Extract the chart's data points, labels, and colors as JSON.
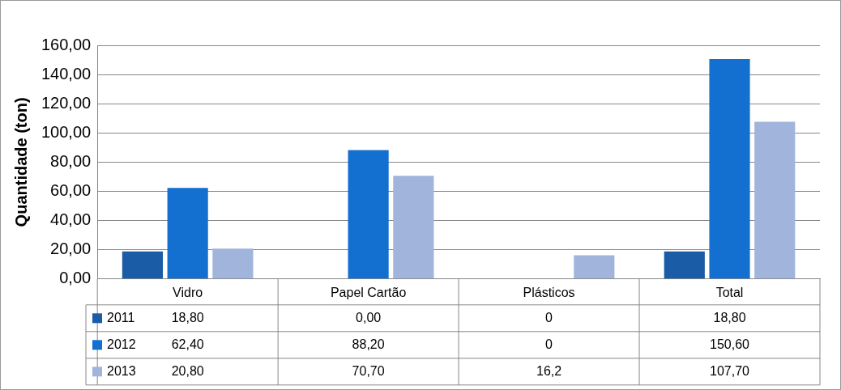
{
  "chart_data": {
    "type": "bar",
    "ylabel": "Quantidade (ton)",
    "categories": [
      "Vidro",
      "Papel Cartão",
      "Plásticos",
      "Total"
    ],
    "series": [
      {
        "name": "2011",
        "color": "#1a5ca6",
        "values": [
          18.8,
          0,
          0,
          18.8
        ],
        "value_labels": [
          "18,80",
          "0,00",
          "0",
          "18,80"
        ]
      },
      {
        "name": "2012",
        "color": "#1370d0",
        "values": [
          62.4,
          88.2,
          0,
          150.6
        ],
        "value_labels": [
          "62,40",
          "88,20",
          "0",
          "150,60"
        ]
      },
      {
        "name": "2013",
        "color": "#a0b4dc",
        "values": [
          20.8,
          70.7,
          16.2,
          107.7
        ],
        "value_labels": [
          "20,80",
          "70,70",
          "16,2",
          "107,70"
        ]
      }
    ],
    "ylim": [
      0,
      160
    ],
    "yticks": [
      {
        "value": 0,
        "label": "0,00"
      },
      {
        "value": 20,
        "label": "20,00"
      },
      {
        "value": 40,
        "label": "40,00"
      },
      {
        "value": 60,
        "label": "60,00"
      },
      {
        "value": 80,
        "label": "80,00"
      },
      {
        "value": 100,
        "label": "100,00"
      },
      {
        "value": 120,
        "label": "120,00"
      },
      {
        "value": 140,
        "label": "140,00"
      },
      {
        "value": 160,
        "label": "160,00"
      }
    ],
    "grid": "y",
    "legend": "bottom",
    "data_labels": true
  }
}
